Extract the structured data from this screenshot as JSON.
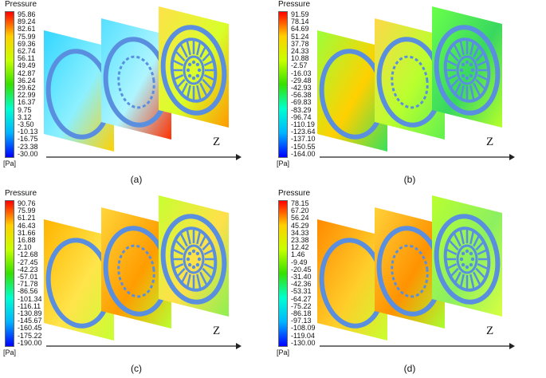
{
  "panels": [
    {
      "title": "Pressure",
      "unit": "[Pa]",
      "axis_label": "Z",
      "caption": "(a)",
      "ticks": [
        "95.86",
        "89.24",
        "82.61",
        "75.99",
        "69.36",
        "62.74",
        "56.11",
        "49.49",
        "42.87",
        "36.24",
        "29.62",
        "22.99",
        "16.37",
        "9.75",
        "3.12",
        "-3.50",
        "-10.13",
        "-16.75",
        "-23.38",
        "-30.00"
      ]
    },
    {
      "title": "Pressure",
      "unit": "[Pa]",
      "axis_label": "Z",
      "caption": "(b)",
      "ticks": [
        "91.59",
        "78.14",
        "64.69",
        "51.24",
        "37.78",
        "24.33",
        "10.88",
        "-2.57",
        "-16.03",
        "-29.48",
        "-42.93",
        "-56.38",
        "-69.83",
        "-83.29",
        "-96.74",
        "-110.19",
        "-123.64",
        "-137.10",
        "-150.55",
        "-164.00"
      ]
    },
    {
      "title": "Pressure",
      "unit": "[Pa]",
      "axis_label": "Z",
      "caption": "(c)",
      "ticks": [
        "90.76",
        "75.99",
        "61.21",
        "46.43",
        "31.66",
        "16.88",
        "2.10",
        "-12.68",
        "-27.45",
        "-42.23",
        "-57.01",
        "-71.78",
        "-86.56",
        "-101.34",
        "-116.11",
        "-130.89",
        "-145.67",
        "-160.45",
        "-175.22",
        "-190.00"
      ]
    },
    {
      "title": "Pressure",
      "unit": "[Pa]",
      "axis_label": "Z",
      "caption": "(d)",
      "ticks": [
        "78.15",
        "67.20",
        "56.24",
        "45.29",
        "34.33",
        "23.38",
        "12.42",
        "1.46",
        "-9.49",
        "-20.45",
        "-31.40",
        "-42.36",
        "-53.31",
        "-64.27",
        "-75.22",
        "-86.18",
        "-97.13",
        "-108.09",
        "-119.04",
        "-130.00"
      ]
    }
  ],
  "colors": {
    "colormap": [
      "#0000ff",
      "#00b4ff",
      "#00ffd0",
      "#35e000",
      "#c8ff00",
      "#ffd000",
      "#ff0000"
    ],
    "disc_ring": "#5a8fe0"
  }
}
